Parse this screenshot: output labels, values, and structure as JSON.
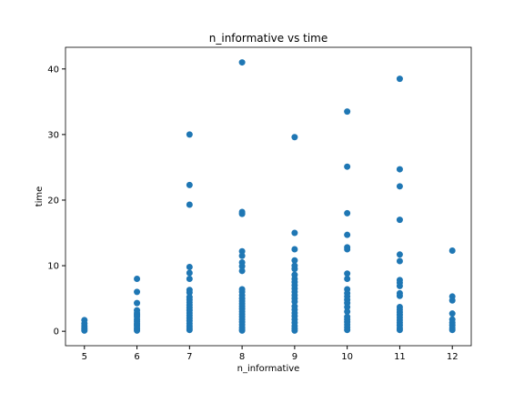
{
  "chart_data": {
    "type": "scatter",
    "title": "n_informative vs time",
    "x_label": "n_informative",
    "y_label": "time",
    "color": "#1f77b4",
    "xlim": [
      4.64,
      12.36
    ],
    "ylim": [
      -2.2,
      43.3
    ],
    "xticks": [
      5,
      6,
      7,
      8,
      9,
      10,
      11,
      12
    ],
    "yticks": [
      0,
      10,
      20,
      30,
      40
    ],
    "x": [
      5,
      5,
      5,
      5,
      5,
      5,
      6,
      6,
      6,
      6,
      6,
      6,
      6,
      6,
      6,
      6,
      6,
      6,
      6,
      6,
      6,
      7,
      7,
      7,
      7,
      7,
      7,
      7,
      7,
      7,
      7,
      7,
      7,
      7,
      7,
      7,
      7,
      7,
      7,
      7,
      7,
      7,
      7,
      8,
      8,
      8,
      8,
      8,
      8,
      8,
      8,
      8,
      8,
      8,
      8,
      8,
      8,
      8,
      8,
      8,
      8,
      8,
      8,
      8,
      8,
      8,
      8,
      8,
      9,
      9,
      9,
      9,
      9,
      9,
      9,
      9,
      9,
      9,
      9,
      9,
      9,
      9,
      9,
      9,
      9,
      9,
      9,
      9,
      9,
      9,
      9,
      9,
      10,
      10,
      10,
      10,
      10,
      10,
      10,
      10,
      10,
      10,
      10,
      10,
      10,
      10,
      10,
      10,
      10,
      10,
      10,
      10,
      10,
      11,
      11,
      11,
      11,
      11,
      11,
      11,
      11,
      11,
      11,
      11,
      11,
      11,
      11,
      11,
      11,
      11,
      11,
      11,
      11,
      11,
      12,
      12,
      12,
      12,
      12,
      12,
      12,
      12,
      12
    ],
    "values": [
      1.7,
      1.2,
      0.8,
      0.5,
      0.3,
      0.1,
      8.0,
      6.0,
      4.3,
      3.2,
      2.8,
      2.5,
      2.2,
      1.8,
      1.5,
      1.2,
      1.0,
      0.8,
      0.5,
      0.3,
      0.1,
      30.0,
      22.3,
      19.3,
      9.8,
      8.9,
      8.0,
      6.3,
      5.9,
      5.2,
      4.8,
      4.4,
      4.0,
      3.6,
      3.2,
      2.8,
      2.4,
      2.0,
      1.6,
      1.2,
      0.8,
      0.5,
      0.2,
      41.0,
      18.2,
      17.9,
      12.2,
      11.5,
      10.5,
      9.9,
      9.2,
      6.4,
      6.0,
      5.5,
      5.0,
      4.6,
      4.2,
      3.8,
      3.4,
      3.0,
      2.6,
      2.2,
      1.8,
      1.4,
      1.0,
      0.6,
      0.3,
      0.1,
      29.6,
      15.0,
      12.5,
      10.8,
      10.0,
      9.5,
      8.6,
      8.0,
      7.5,
      7.0,
      6.5,
      6.0,
      5.5,
      5.0,
      4.5,
      3.8,
      3.3,
      2.8,
      2.3,
      1.8,
      1.3,
      0.8,
      0.4,
      0.1,
      33.5,
      25.1,
      18.0,
      14.7,
      12.8,
      12.5,
      8.8,
      8.0,
      6.4,
      5.8,
      5.3,
      4.8,
      4.3,
      3.7,
      3.0,
      2.2,
      1.8,
      1.4,
      1.0,
      0.6,
      0.2,
      38.5,
      24.7,
      22.1,
      17.0,
      11.7,
      10.7,
      7.8,
      7.4,
      6.9,
      5.8,
      5.4,
      3.7,
      3.3,
      2.9,
      2.5,
      2.1,
      1.7,
      1.3,
      0.9,
      0.5,
      0.2,
      12.3,
      5.3,
      4.7,
      2.7,
      1.8,
      1.3,
      0.9,
      0.5,
      0.2
    ]
  }
}
